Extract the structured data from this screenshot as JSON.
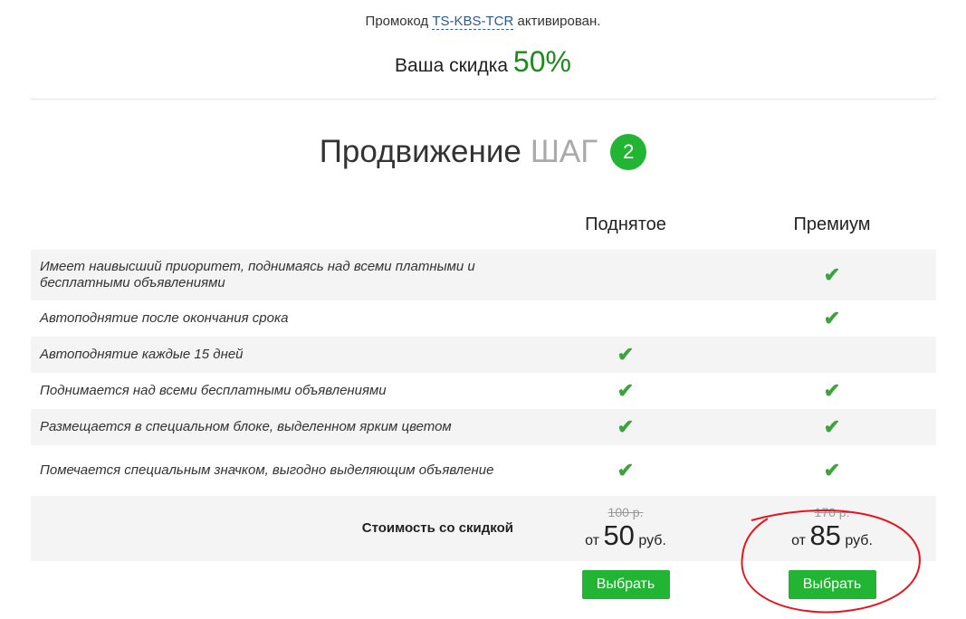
{
  "promo": {
    "prefix": "Промокод",
    "code": "TS-KBS-TCR",
    "suffix": "активирован."
  },
  "discount": {
    "label": "Ваша скидка",
    "value": "50%"
  },
  "title": {
    "text": "Продвижение",
    "step_label": "ШАГ",
    "step_number": "2"
  },
  "columns": [
    "Поднятое",
    "Премиум"
  ],
  "features": [
    {
      "label": "Имеет наивысший приоритет, поднимаясь над всеми платными и бесплатными объявлениями",
      "raised": false,
      "premium": true
    },
    {
      "label": "Автоподнятие после окончания срока",
      "raised": false,
      "premium": true
    },
    {
      "label": "Автоподнятие каждые 15 дней",
      "raised": true,
      "premium": false
    },
    {
      "label": "Поднимается над всеми бесплатными объявлениями",
      "raised": true,
      "premium": true
    },
    {
      "label": "Размещается в специальном блоке, выделенном ярким цветом",
      "raised": true,
      "premium": true
    },
    {
      "label": "Помечается специальным значком, выгодно выделяющим объявление",
      "raised": true,
      "premium": true
    }
  ],
  "price": {
    "label": "Стоимость со скидкой",
    "from": "от",
    "currency": "руб.",
    "raised": {
      "old": "100 р.",
      "new": "50"
    },
    "premium": {
      "old": "170 р.",
      "new": "85"
    }
  },
  "buttons": {
    "select": "Выбрать"
  },
  "colors": {
    "accent": "#22b533",
    "discount": "#1e8a1e",
    "annotation": "#e8141c"
  },
  "icons": {
    "check": "check-icon"
  }
}
